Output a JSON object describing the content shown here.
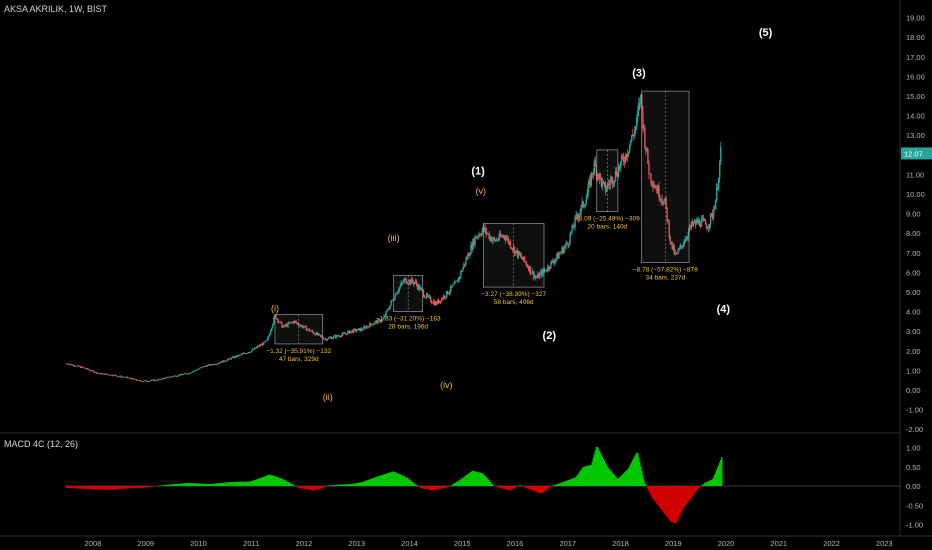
{
  "header": {
    "symbol": "AKSA AKRILIK, 1W, BIST"
  },
  "macd_panel": {
    "title": "MACD 4C (12, 26)"
  },
  "last_price": "12.07",
  "colors": {
    "up": "#26a69a",
    "down": "#ef5350",
    "price_label": "#26a69a",
    "macd_up": "#00c800",
    "macd_down": "#d00000",
    "wave_major": "#ffffff",
    "wave_minor": "#f0b43c"
  },
  "chart_data": [
    {
      "type": "candlestick",
      "title": "AKSA AKRILIK, 1W, BIST",
      "x_ticks": [
        "2008",
        "2009",
        "2010",
        "2011",
        "2012",
        "2013",
        "2014",
        "2015",
        "2016",
        "2017",
        "2018",
        "2019",
        "2020",
        "2021",
        "2022",
        "2023"
      ],
      "y_ticks": [
        "-2.00",
        "-1.00",
        "0.00",
        "1.00",
        "2.00",
        "3.00",
        "4.00",
        "5.00",
        "6.00",
        "7.00",
        "8.00",
        "9.00",
        "10.00",
        "11.00",
        "12.00",
        "13.00",
        "14.00",
        "15.00",
        "16.00",
        "17.00",
        "18.00",
        "19.00"
      ],
      "ylim": [
        -2,
        19.6
      ],
      "close_path": [
        [
          2007.5,
          1.35
        ],
        [
          2007.8,
          1.15
        ],
        [
          2008.1,
          0.85
        ],
        [
          2008.4,
          0.75
        ],
        [
          2008.7,
          0.6
        ],
        [
          2008.9,
          0.45
        ],
        [
          2009.2,
          0.5
        ],
        [
          2009.5,
          0.7
        ],
        [
          2009.8,
          0.85
        ],
        [
          2010.1,
          1.2
        ],
        [
          2010.4,
          1.4
        ],
        [
          2010.7,
          1.7
        ],
        [
          2011.0,
          2.0
        ],
        [
          2011.3,
          2.5
        ],
        [
          2011.45,
          3.8
        ],
        [
          2011.6,
          3.2
        ],
        [
          2011.8,
          3.5
        ],
        [
          2012.0,
          3.2
        ],
        [
          2012.2,
          2.9
        ],
        [
          2012.4,
          2.6
        ],
        [
          2012.7,
          2.8
        ],
        [
          2012.9,
          3.0
        ],
        [
          2013.1,
          3.1
        ],
        [
          2013.3,
          3.4
        ],
        [
          2013.5,
          3.6
        ],
        [
          2013.75,
          5.0
        ],
        [
          2013.9,
          5.6
        ],
        [
          2014.1,
          5.5
        ],
        [
          2014.3,
          4.8
        ],
        [
          2014.5,
          4.4
        ],
        [
          2014.7,
          4.9
        ],
        [
          2014.9,
          5.5
        ],
        [
          2015.05,
          6.5
        ],
        [
          2015.25,
          7.8
        ],
        [
          2015.4,
          8.2
        ],
        [
          2015.6,
          7.6
        ],
        [
          2015.8,
          7.9
        ],
        [
          2016.0,
          7.1
        ],
        [
          2016.2,
          6.5
        ],
        [
          2016.4,
          5.7
        ],
        [
          2016.6,
          6.2
        ],
        [
          2016.8,
          6.8
        ],
        [
          2017.0,
          7.5
        ],
        [
          2017.15,
          8.7
        ],
        [
          2017.35,
          9.8
        ],
        [
          2017.5,
          11.5
        ],
        [
          2017.7,
          10.2
        ],
        [
          2017.9,
          11.0
        ],
        [
          2018.1,
          12.0
        ],
        [
          2018.3,
          13.5
        ],
        [
          2018.38,
          15.0
        ],
        [
          2018.45,
          13.0
        ],
        [
          2018.55,
          11.0
        ],
        [
          2018.7,
          10.2
        ],
        [
          2018.85,
          9.5
        ],
        [
          2018.95,
          7.5
        ],
        [
          2019.05,
          6.8
        ],
        [
          2019.2,
          7.6
        ],
        [
          2019.35,
          8.4
        ],
        [
          2019.5,
          8.6
        ],
        [
          2019.65,
          8.4
        ],
        [
          2019.75,
          9.0
        ],
        [
          2019.82,
          10.0
        ],
        [
          2019.9,
          12.07
        ]
      ],
      "boxes": [
        {
          "x": [
            2011.45,
            2012.35
          ],
          "y": [
            2.35,
            3.85
          ],
          "label_lines": [
            "−1.32 (−35.91%) −132",
            "47 bars, 329d"
          ]
        },
        {
          "x": [
            2013.7,
            2014.25
          ],
          "y": [
            4.0,
            5.85
          ],
          "label_lines": [
            "−1.83 (−31.20%) −183",
            "28 bars, 196d"
          ]
        },
        {
          "x": [
            2015.4,
            2016.55
          ],
          "y": [
            5.25,
            8.5
          ],
          "label_lines": [
            "−3.27 (−38.39%) −327",
            "58 bars, 406d"
          ]
        },
        {
          "x": [
            2017.55,
            2017.95
          ],
          "y": [
            9.1,
            12.25
          ],
          "label_lines": [
            "−3.09 (−25.49%) −309",
            "20 bars, 140d"
          ]
        },
        {
          "x": [
            2018.4,
            2019.3
          ],
          "y": [
            6.5,
            15.25
          ],
          "label_lines": [
            "−8.78 (−57.82%) −878",
            "34 bars, 237d"
          ]
        }
      ],
      "waves_major": [
        {
          "text": "(1)",
          "x": 2015.3,
          "y": 11.0
        },
        {
          "text": "(2)",
          "x": 2016.65,
          "y": 2.6
        },
        {
          "text": "(3)",
          "x": 2018.35,
          "y": 16.0
        },
        {
          "text": "(4)",
          "x": 2019.95,
          "y": 3.95
        },
        {
          "text": "(5)",
          "x": 2020.75,
          "y": 18.05
        }
      ],
      "waves_minor": [
        {
          "text": "(i)",
          "x": 2011.45,
          "y": 4.0
        },
        {
          "text": "(ii)",
          "x": 2012.45,
          "y": -0.5
        },
        {
          "text": "(iii)",
          "x": 2013.7,
          "y": 7.6
        },
        {
          "text": "(iv)",
          "x": 2014.7,
          "y": 0.1
        },
        {
          "text": "(v)",
          "x": 2015.35,
          "y": 10.0
        }
      ]
    },
    {
      "type": "histogram",
      "title": "MACD 4C (12, 26)",
      "y_ticks": [
        "1.00",
        "0.50",
        "0.00",
        "-0.50",
        "-1.00"
      ],
      "ylim": [
        -1.1,
        1.2
      ],
      "path": [
        [
          2007.5,
          -0.05
        ],
        [
          2007.9,
          -0.08
        ],
        [
          2008.3,
          -0.1
        ],
        [
          2008.7,
          -0.06
        ],
        [
          2009.0,
          -0.04
        ],
        [
          2009.4,
          0.03
        ],
        [
          2009.8,
          0.08
        ],
        [
          2010.2,
          0.05
        ],
        [
          2010.6,
          0.1
        ],
        [
          2011.0,
          0.12
        ],
        [
          2011.35,
          0.3
        ],
        [
          2011.6,
          0.18
        ],
        [
          2011.9,
          -0.05
        ],
        [
          2012.2,
          -0.12
        ],
        [
          2012.5,
          0.02
        ],
        [
          2012.9,
          0.05
        ],
        [
          2013.1,
          0.1
        ],
        [
          2013.4,
          0.25
        ],
        [
          2013.7,
          0.38
        ],
        [
          2013.95,
          0.22
        ],
        [
          2014.2,
          -0.05
        ],
        [
          2014.45,
          -0.12
        ],
        [
          2014.75,
          -0.02
        ],
        [
          2014.95,
          0.15
        ],
        [
          2015.2,
          0.4
        ],
        [
          2015.4,
          0.32
        ],
        [
          2015.6,
          0.0
        ],
        [
          2015.9,
          -0.12
        ],
        [
          2016.1,
          0.02
        ],
        [
          2016.3,
          -0.1
        ],
        [
          2016.5,
          -0.2
        ],
        [
          2016.7,
          0.0
        ],
        [
          2016.95,
          0.12
        ],
        [
          2017.15,
          0.22
        ],
        [
          2017.3,
          0.5
        ],
        [
          2017.45,
          0.55
        ],
        [
          2017.55,
          1.05
        ],
        [
          2017.75,
          0.5
        ],
        [
          2017.95,
          0.18
        ],
        [
          2018.15,
          0.45
        ],
        [
          2018.32,
          0.9
        ],
        [
          2018.45,
          0.12
        ],
        [
          2018.6,
          -0.3
        ],
        [
          2018.8,
          -0.65
        ],
        [
          2018.95,
          -0.92
        ],
        [
          2019.05,
          -0.98
        ],
        [
          2019.2,
          -0.55
        ],
        [
          2019.35,
          -0.3
        ],
        [
          2019.45,
          -0.1
        ],
        [
          2019.6,
          0.08
        ],
        [
          2019.75,
          0.18
        ],
        [
          2019.85,
          0.5
        ],
        [
          2019.92,
          0.75
        ]
      ]
    }
  ]
}
